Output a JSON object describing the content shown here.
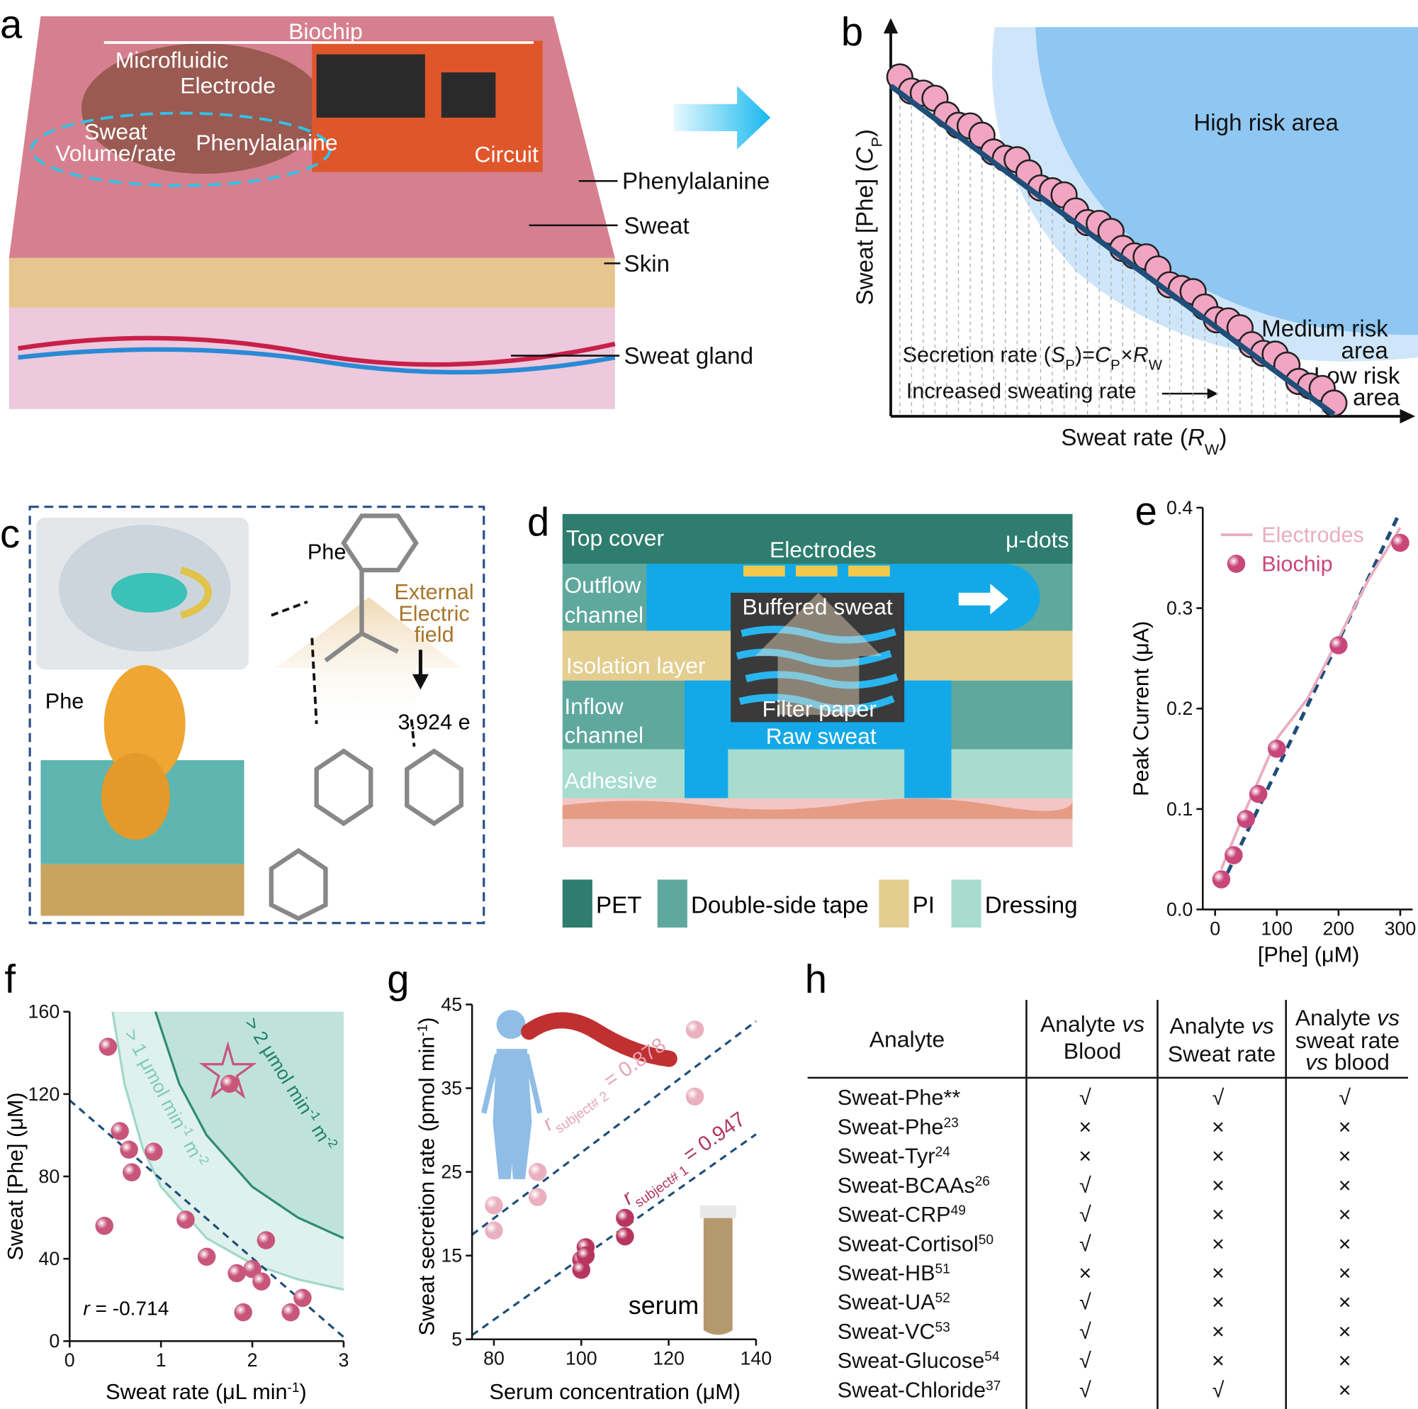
{
  "figure": {
    "panel_a": {
      "label": "a",
      "biochip": "Biochip",
      "microfluidic": "Microfluidic",
      "electrode": "Electrode",
      "sweat": "Sweat",
      "volume_rate": "Volume/rate",
      "phenylalanine": "Phenylalanine",
      "circuit": "Circuit",
      "callouts": [
        "Phenylalanine",
        "Sweat",
        "Skin",
        "Sweat gland"
      ]
    },
    "panel_b": {
      "label": "b",
      "high": "High risk area",
      "medium": [
        "Medium risk",
        "area"
      ],
      "low": [
        "Low risk",
        "area"
      ],
      "secretion": [
        "Secretion rate (",
        "S",
        "P",
        ")=",
        "C",
        "P",
        "×",
        "R",
        "W"
      ],
      "increase": "Increased sweating rate",
      "y_label": [
        "Sweat [Phe] (",
        "C",
        "P",
        ")"
      ],
      "x_label": [
        "Sweat rate (",
        "R",
        "W",
        ")"
      ]
    },
    "panel_c": {
      "label": "c",
      "phe_left": "Phe",
      "phe_right": "Phe",
      "field": [
        "External",
        "Electric",
        "field"
      ],
      "distance": "3.924 e"
    },
    "panel_d": {
      "label": "d",
      "top_cover": "Top cover",
      "electrodes": "Electrodes",
      "mu_dots": "μ-dots",
      "outflow": [
        "Outflow",
        "channel"
      ],
      "buffered": "Buffered sweat",
      "isolation": "Isolation layer",
      "inflow": [
        "Inflow",
        "channel"
      ],
      "filter": "Filter paper",
      "raw": "Raw sweat",
      "adhesive": "Adhesive",
      "legend": [
        {
          "name": "PET",
          "color": "#2e7d6e"
        },
        {
          "name": "Double-side tape",
          "color": "#5fa89e"
        },
        {
          "name": "PI",
          "color": "#e3cd8f"
        },
        {
          "name": "Dressing",
          "color": "#a7dccf"
        }
      ]
    },
    "panel_h": {
      "label": "h",
      "header": {
        "analyte": "Analyte",
        "blood": [
          "Analyte ",
          "vs",
          "Blood"
        ],
        "rate": [
          "Analyte ",
          "vs",
          "Sweat rate"
        ],
        "both": [
          "Analyte ",
          "vs",
          "sweat rate",
          "vs",
          " blood"
        ]
      },
      "rows": [
        {
          "name": "Sweat-Phe**",
          "marks": [
            "√",
            "√",
            "√"
          ]
        },
        {
          "name": "Sweat-Phe",
          "ref": "23",
          "marks": [
            "×",
            "×",
            "×"
          ]
        },
        {
          "name": "Sweat-Tyr",
          "ref": "24",
          "marks": [
            "×",
            "×",
            "×"
          ]
        },
        {
          "name": "Sweat-BCAAs",
          "ref": "26",
          "marks": [
            "√",
            "×",
            "×"
          ]
        },
        {
          "name": "Sweat-CRP",
          "ref": "49",
          "marks": [
            "√",
            "×",
            "×"
          ]
        },
        {
          "name": "Sweat-Cortisol",
          "ref": "50",
          "marks": [
            "√",
            "×",
            "×"
          ]
        },
        {
          "name": "Sweat-HB",
          "ref": "51",
          "marks": [
            "×",
            "×",
            "×"
          ]
        },
        {
          "name": "Sweat-UA",
          "ref": "52",
          "marks": [
            "√",
            "×",
            "×"
          ]
        },
        {
          "name": "Sweat-VC",
          "ref": "53",
          "marks": [
            "√",
            "×",
            "×"
          ]
        },
        {
          "name": "Sweat-Glucose",
          "ref": "54",
          "marks": [
            "√",
            "×",
            "×"
          ]
        },
        {
          "name": "Sweat-Chloride",
          "ref": "37",
          "marks": [
            "√",
            "√",
            "×"
          ]
        }
      ]
    }
  },
  "chart_data": [
    {
      "type": "scatter",
      "panel_label": "e",
      "x_label": "[Phe] (μM)",
      "y_label": "Peak Current (μA)",
      "xlim": [
        -20,
        320
      ],
      "xticks": [
        0,
        100,
        200,
        300
      ],
      "ylim": [
        0,
        0.4
      ],
      "yticks": [
        {
          "value": 0,
          "label": "0.0"
        },
        0.1,
        0.2,
        0.3,
        0.4
      ],
      "legend": "upper left",
      "series": [
        {
          "name": "Electrodes",
          "type": "line",
          "color": "#e8aec0",
          "x": [
            10,
            30,
            50,
            100,
            150,
            200,
            250,
            300
          ],
          "values": [
            0.04,
            0.07,
            0.1,
            0.17,
            0.21,
            0.27,
            0.33,
            0.38
          ]
        },
        {
          "name": "Biochip",
          "type": "scatter",
          "color": "#c8467a",
          "x": [
            10,
            30,
            50,
            70,
            100,
            200,
            300
          ],
          "values": [
            0.03,
            0.054,
            0.09,
            0.115,
            0.16,
            0.263,
            0.365
          ]
        }
      ]
    },
    {
      "type": "scatter",
      "panel_label": "f",
      "x_label": [
        "Sweat rate (μL min",
        "-1",
        ")"
      ],
      "y_label": "Sweat [Phe] (μM)",
      "xlim": [
        0,
        3
      ],
      "xticks": [
        0,
        1,
        2,
        3
      ],
      "ylim": [
        0,
        160
      ],
      "yticks": [
        0,
        40,
        80,
        120,
        160
      ],
      "annotation": [
        "r",
        " = -0.714"
      ],
      "regions": [
        [
          "> 1 μmol min",
          "-1",
          " m",
          "-2"
        ],
        [
          "> 2 μmol min",
          "-1",
          " m",
          "-2"
        ]
      ],
      "series": [
        {
          "type": "scatter",
          "color": "#c8557a",
          "x": [
            0.42,
            0.55,
            0.65,
            0.68,
            0.92,
            0.38,
            1.27,
            1.5,
            1.83,
            1.9,
            2.0,
            2.1,
            2.15,
            2.42,
            2.55,
            1.75
          ],
          "values": [
            143,
            102,
            93,
            82,
            92,
            56,
            59,
            41,
            33,
            14,
            35,
            29,
            49,
            14,
            21,
            125
          ]
        }
      ]
    },
    {
      "type": "scatter",
      "panel_label": "g",
      "x_label": "Serum concentration (μM)",
      "y_label": [
        "Sweat secretion rate  (pmol min",
        "-1",
        ")"
      ],
      "xlim": [
        75,
        140
      ],
      "xticks": [
        80,
        100,
        120,
        140
      ],
      "ylim": [
        5,
        45
      ],
      "yticks": [
        5,
        15,
        25,
        35,
        45
      ],
      "annotations": [
        [
          "r",
          "subject# 2",
          " = 0.878"
        ],
        [
          "r",
          "subject# 1",
          " = 0.947"
        ]
      ],
      "inset_label": "serum",
      "series": [
        {
          "type": "scatter",
          "color": "#eab0c0",
          "x": [
            80,
            80,
            90,
            90,
            126,
            126
          ],
          "values": [
            21,
            18,
            25,
            22,
            42,
            34
          ]
        },
        {
          "type": "scatter",
          "color": "#b8355f",
          "x": [
            100,
            100,
            101,
            101,
            110,
            110
          ],
          "values": [
            14.5,
            13.3,
            16,
            15,
            19.5,
            17.3
          ]
        }
      ]
    }
  ]
}
